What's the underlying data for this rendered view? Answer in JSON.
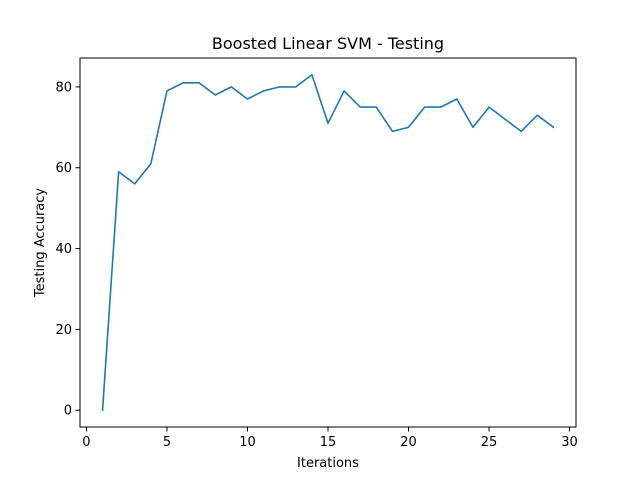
{
  "chart_data": {
    "type": "line",
    "title": "Boosted Linear SVM - Testing",
    "xlabel": "Iterations",
    "ylabel": "Testing Accuracy",
    "xlim": [
      -0.4,
      30.4
    ],
    "ylim": [
      -4.15,
      87.15
    ],
    "xticks": [
      0,
      5,
      10,
      15,
      20,
      25,
      30
    ],
    "yticks": [
      0,
      20,
      40,
      60,
      80
    ],
    "grid": false,
    "series": [
      {
        "color": "#1f77b4",
        "x": [
          1,
          2,
          3,
          4,
          5,
          6,
          7,
          8,
          9,
          10,
          11,
          12,
          13,
          14,
          15,
          16,
          17,
          18,
          19,
          20,
          21,
          22,
          23,
          24,
          25,
          26,
          27,
          28,
          29
        ],
        "y": [
          0,
          59,
          56,
          61,
          79,
          81,
          81,
          78,
          80,
          77,
          79,
          80,
          80,
          83,
          71,
          79,
          75,
          75,
          69,
          70,
          75,
          75,
          77,
          70,
          75,
          72,
          69,
          73,
          70
        ]
      }
    ]
  }
}
